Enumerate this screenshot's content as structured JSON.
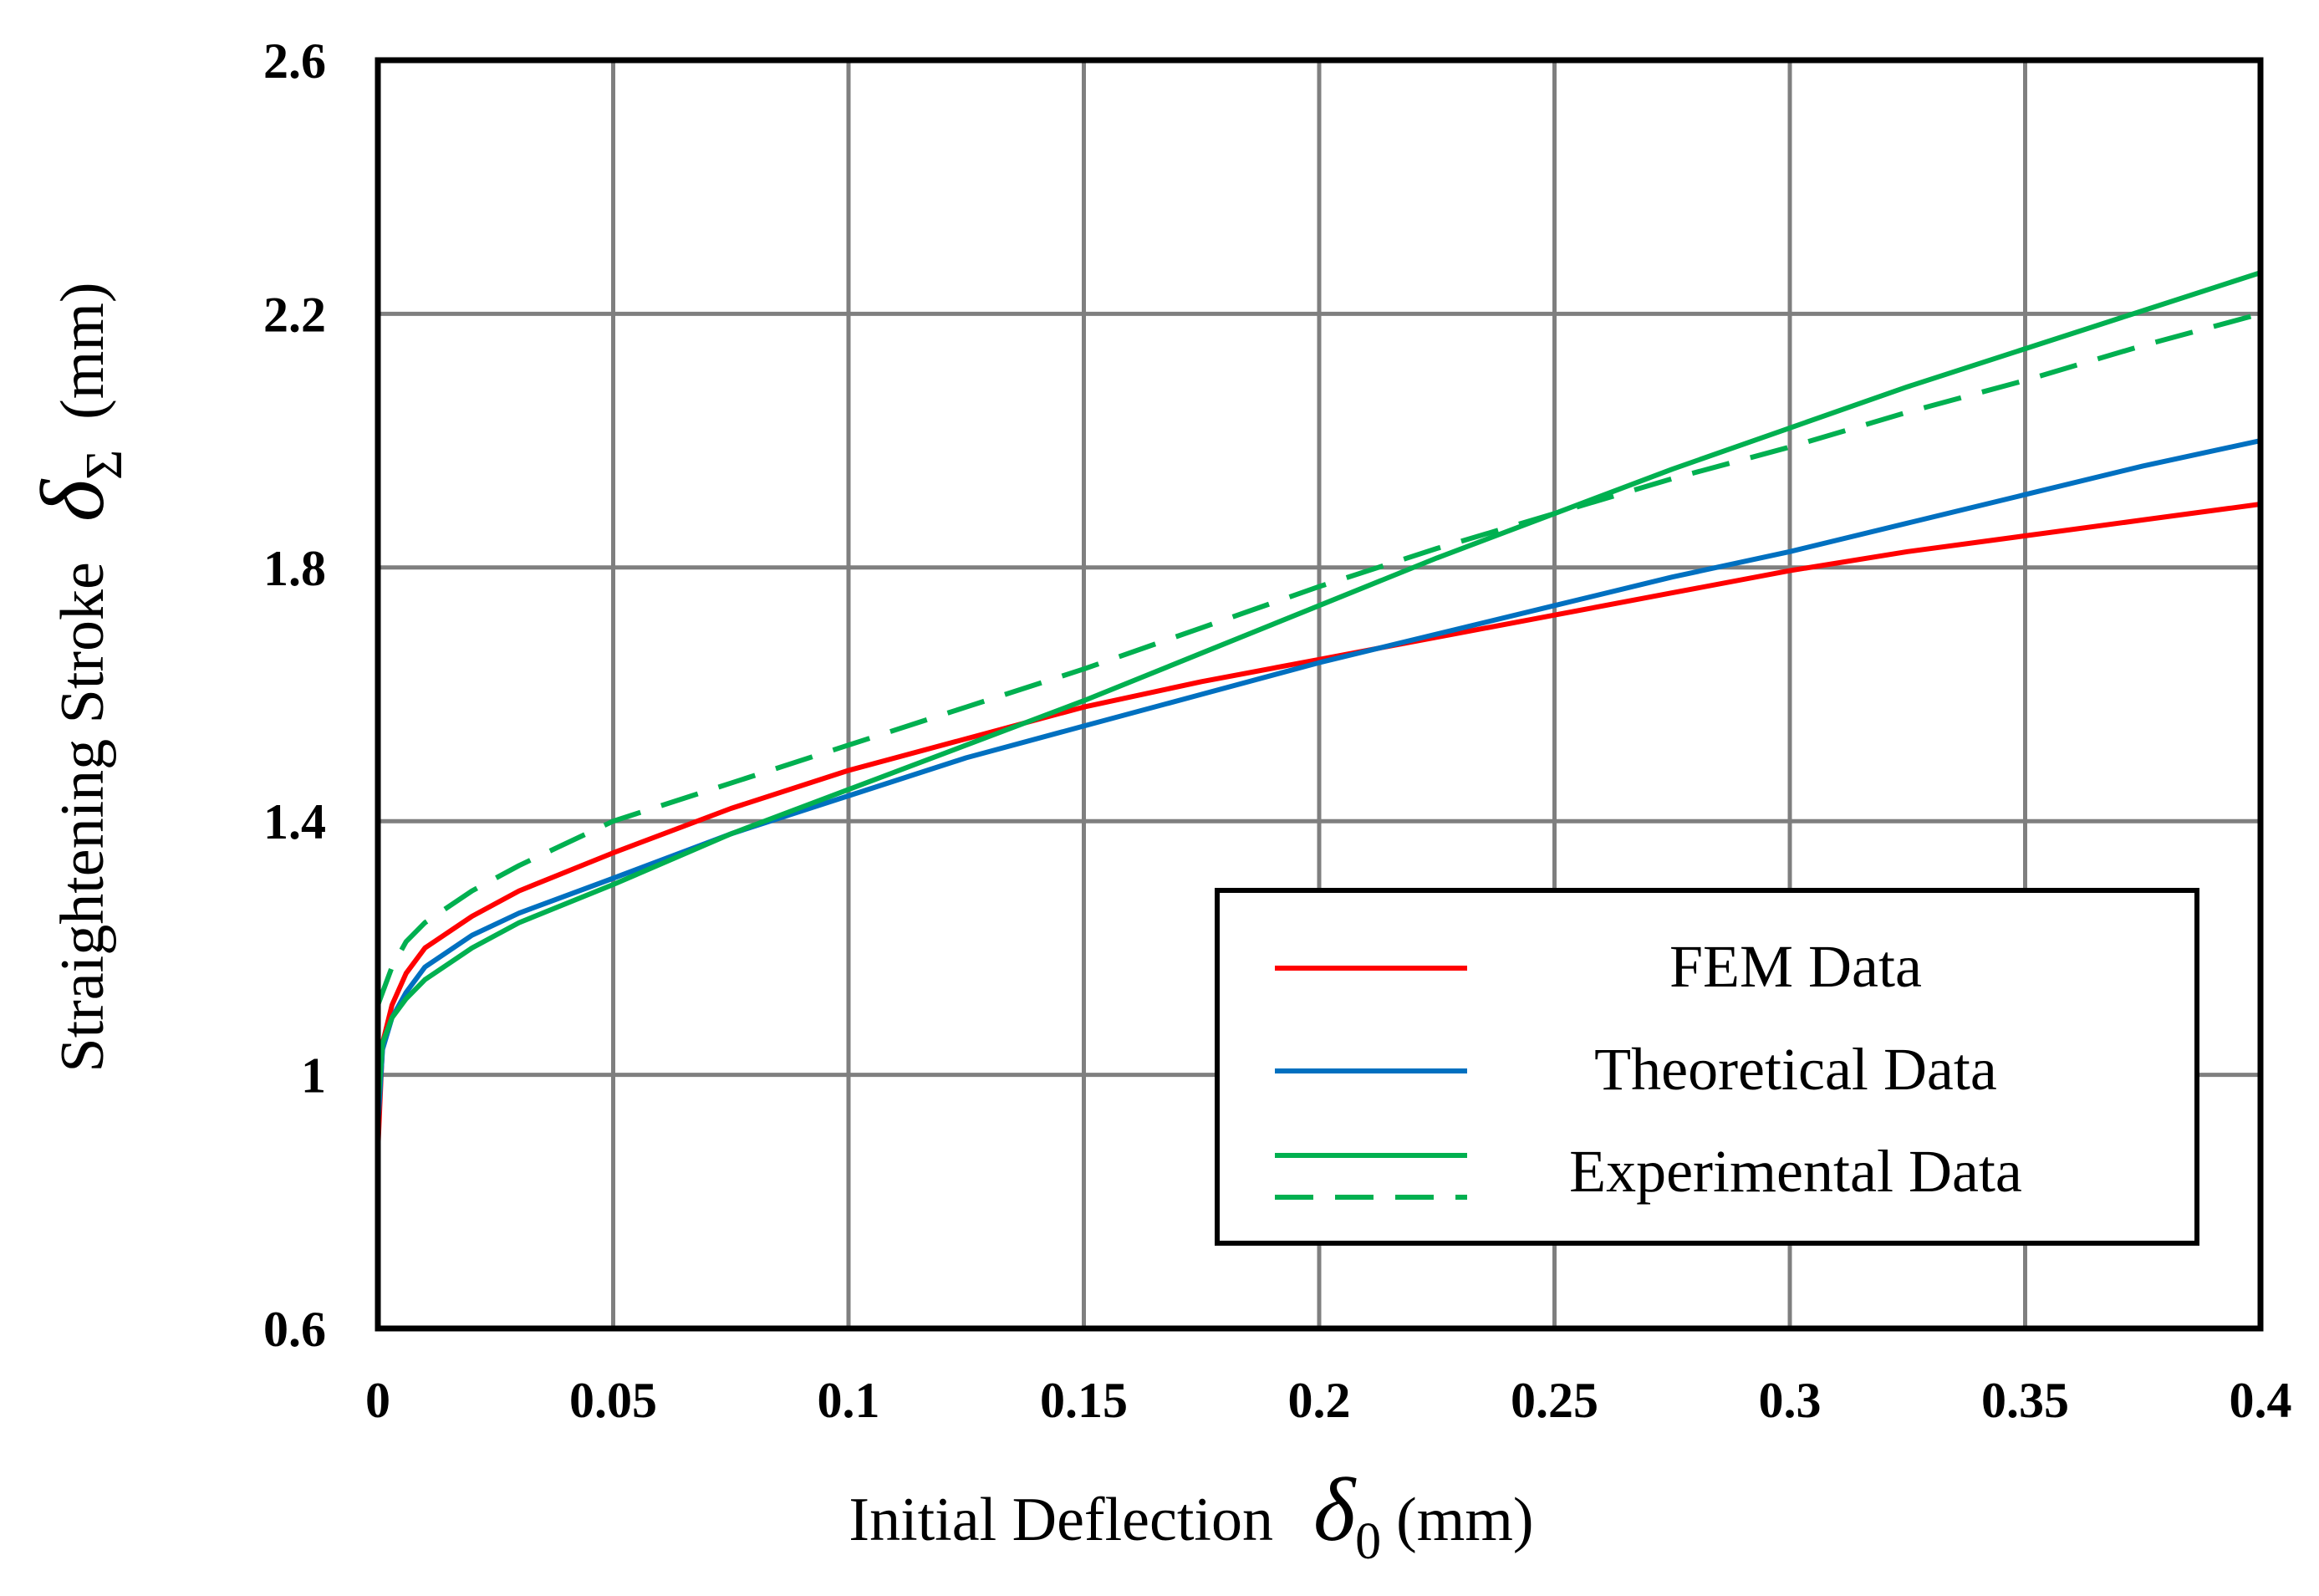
{
  "chart_data": {
    "type": "line",
    "xlabel": "Initial Deflection",
    "xlabel_symbol": "δ",
    "xlabel_subscript": "0",
    "xlabel_unit": "(mm)",
    "ylabel": "Straightening Stroke",
    "ylabel_symbol": "δ",
    "ylabel_subscript": "Σ",
    "ylabel_unit": "(mm)",
    "xlim": [
      0,
      0.4
    ],
    "ylim": [
      0.6,
      2.6
    ],
    "xticks": [
      0,
      0.05,
      0.1,
      0.15,
      0.2,
      0.25,
      0.3,
      0.35,
      0.4
    ],
    "xtick_labels": [
      "0",
      "0.05",
      "0.1",
      "0.15",
      "0.2",
      "0.25",
      "0.3",
      "0.35",
      "0.4"
    ],
    "yticks": [
      0.6,
      1.0,
      1.4,
      1.8,
      2.2,
      2.6
    ],
    "ytick_labels": [
      "0.6",
      "1",
      "1.4",
      "1.8",
      "2.2",
      "2.6"
    ],
    "grid": true,
    "legend_position": "lower-right",
    "series": [
      {
        "name": "FEM Data",
        "color": "#ff0000",
        "style": "solid",
        "x": [
          0,
          0.001,
          0.003,
          0.006,
          0.01,
          0.02,
          0.03,
          0.05,
          0.075,
          0.1,
          0.125,
          0.15,
          0.175,
          0.2,
          0.225,
          0.25,
          0.275,
          0.3,
          0.325,
          0.35,
          0.375,
          0.4
        ],
        "y": [
          0.88,
          1.05,
          1.11,
          1.16,
          1.2,
          1.25,
          1.29,
          1.35,
          1.42,
          1.48,
          1.53,
          1.58,
          1.62,
          1.655,
          1.69,
          1.725,
          1.76,
          1.795,
          1.825,
          1.85,
          1.875,
          1.9
        ]
      },
      {
        "name": "Theoretical Data",
        "color": "#0070c0",
        "style": "solid",
        "x": [
          0,
          0.001,
          0.003,
          0.006,
          0.01,
          0.02,
          0.03,
          0.05,
          0.075,
          0.1,
          0.125,
          0.15,
          0.175,
          0.2,
          0.225,
          0.25,
          0.275,
          0.3,
          0.325,
          0.35,
          0.375,
          0.4
        ],
        "y": [
          0.92,
          1.04,
          1.09,
          1.13,
          1.17,
          1.22,
          1.255,
          1.31,
          1.38,
          1.44,
          1.5,
          1.55,
          1.6,
          1.65,
          1.695,
          1.74,
          1.785,
          1.825,
          1.87,
          1.915,
          1.96,
          2.0
        ]
      },
      {
        "name": "Experimental Data",
        "color": "#00b050",
        "style": "solid",
        "x": [
          0,
          0.001,
          0.003,
          0.006,
          0.01,
          0.02,
          0.03,
          0.05,
          0.075,
          0.1,
          0.125,
          0.15,
          0.175,
          0.2,
          0.225,
          0.25,
          0.275,
          0.3,
          0.325,
          0.35,
          0.375,
          0.4
        ],
        "y": [
          0.95,
          1.05,
          1.09,
          1.12,
          1.15,
          1.2,
          1.24,
          1.3,
          1.38,
          1.45,
          1.52,
          1.59,
          1.665,
          1.74,
          1.815,
          1.885,
          1.955,
          2.02,
          2.085,
          2.145,
          2.205,
          2.265
        ]
      },
      {
        "name": "",
        "color": "#00b050",
        "style": "dashed",
        "x": [
          0,
          0.003,
          0.006,
          0.01,
          0.02,
          0.03,
          0.05,
          0.075,
          0.1,
          0.125,
          0.15,
          0.175,
          0.2,
          0.225,
          0.25,
          0.275,
          0.3,
          0.325,
          0.35,
          0.375,
          0.4
        ],
        "y": [
          1.11,
          1.17,
          1.21,
          1.24,
          1.29,
          1.33,
          1.4,
          1.46,
          1.52,
          1.58,
          1.64,
          1.705,
          1.77,
          1.83,
          1.885,
          1.94,
          1.99,
          2.045,
          2.095,
          2.15,
          2.2
        ]
      }
    ]
  }
}
